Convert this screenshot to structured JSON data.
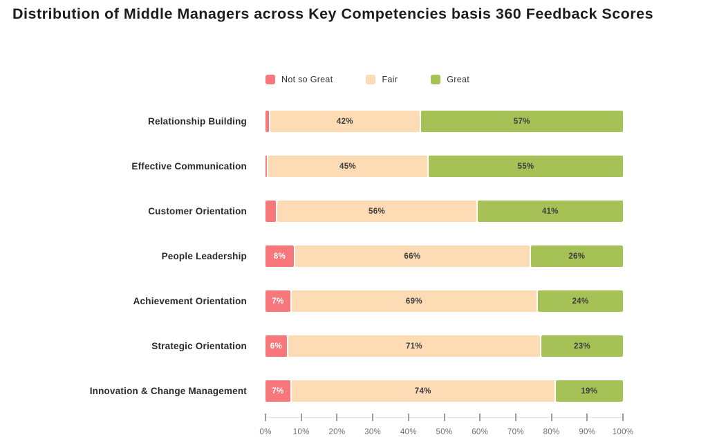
{
  "title": "Distribution of Middle Managers across Key Competencies basis 360 Feedback Scores",
  "colors": {
    "not_so_great": "#f7777a",
    "fair": "#fcdbb5",
    "great": "#a6c257",
    "value_text_dark": "#3d3d3d",
    "value_text_light": "#ffffff"
  },
  "legend": [
    {
      "label": "Not so Great",
      "color": "#f7777a"
    },
    {
      "label": "Fair",
      "color": "#fcdbb5"
    },
    {
      "label": "Great",
      "color": "#a6c257"
    }
  ],
  "chart_data": {
    "type": "bar",
    "variant": "horizontal-stacked",
    "title": "Distribution of Middle Managers across Key Competencies basis 360 Feedback Scores",
    "categories": [
      "Relationship Building",
      "Effective Communication",
      "Customer Orientation",
      "People Leadership",
      "Achievement Orientation",
      "Strategic Orientation",
      "Innovation & Change Management"
    ],
    "series": [
      {
        "name": "Not so Great",
        "color": "#f7777a",
        "values": [
          1,
          0,
          3,
          8,
          7,
          6,
          7
        ],
        "labels": [
          "1%",
          "",
          "3%",
          "8%",
          "7%",
          "6%",
          "7%"
        ]
      },
      {
        "name": "Fair",
        "color": "#fcdbb5",
        "values": [
          42,
          45,
          56,
          66,
          69,
          71,
          74
        ],
        "labels": [
          "42%",
          "45%",
          "56%",
          "66%",
          "69%",
          "71%",
          "74%"
        ]
      },
      {
        "name": "Great",
        "color": "#a6c257",
        "values": [
          57,
          55,
          41,
          26,
          24,
          23,
          19
        ],
        "labels": [
          "57%",
          "55%",
          "41%",
          "26%",
          "24%",
          "23%",
          "19%"
        ]
      }
    ],
    "xlim": [
      0,
      100
    ],
    "x_ticks": [
      "0%",
      "10%",
      "20%",
      "30%",
      "40%",
      "50%",
      "60%",
      "70%",
      "80%",
      "90%",
      "100%"
    ],
    "grid": false,
    "legend_position": "top"
  }
}
